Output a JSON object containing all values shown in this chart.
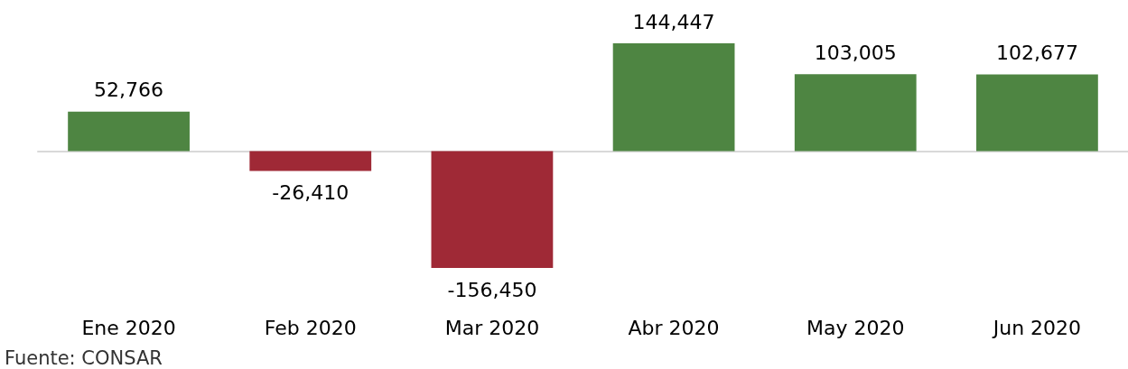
{
  "chart_data": {
    "type": "bar",
    "categories": [
      "Ene 2020",
      "Feb 2020",
      "Mar 2020",
      "Abr 2020",
      "May 2020",
      "Jun 2020"
    ],
    "values": [
      52766,
      -26410,
      -156450,
      144447,
      103005,
      102677
    ],
    "value_labels": [
      "52,766",
      "-26,410",
      "-156,450",
      "144,447",
      "103,005",
      "102,677"
    ],
    "colors": [
      "#4e8542",
      "#9f2936",
      "#9f2936",
      "#4e8542",
      "#4e8542",
      "#4e8542"
    ],
    "annotations": [
      "Fuente: CONSAR"
    ]
  }
}
